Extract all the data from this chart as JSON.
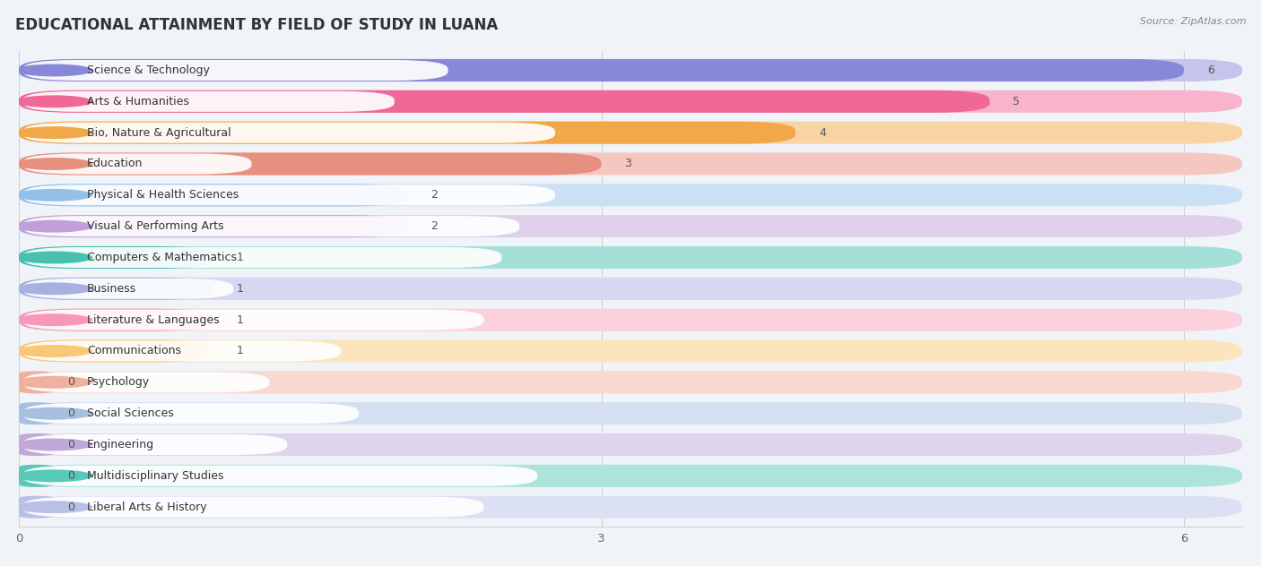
{
  "title": "EDUCATIONAL ATTAINMENT BY FIELD OF STUDY IN LUANA",
  "source": "Source: ZipAtlas.com",
  "categories": [
    "Science & Technology",
    "Arts & Humanities",
    "Bio, Nature & Agricultural",
    "Education",
    "Physical & Health Sciences",
    "Visual & Performing Arts",
    "Computers & Mathematics",
    "Business",
    "Literature & Languages",
    "Communications",
    "Psychology",
    "Social Sciences",
    "Engineering",
    "Multidisciplinary Studies",
    "Liberal Arts & History"
  ],
  "values": [
    6,
    5,
    4,
    3,
    2,
    2,
    1,
    1,
    1,
    1,
    0,
    0,
    0,
    0,
    0
  ],
  "bar_colors": [
    "#8888d8",
    "#f06898",
    "#f0a848",
    "#e89080",
    "#94c0e8",
    "#c0a0d8",
    "#48c0b0",
    "#a8b0e0",
    "#f898b8",
    "#f8c878",
    "#f0b0a0",
    "#a8c0e0",
    "#c0a8d8",
    "#58c8b8",
    "#b8c0e8"
  ],
  "bar_colors_light": [
    "#c4c4ec",
    "#f8b4cc",
    "#f8d4a4",
    "#f4c8c0",
    "#cae0f4",
    "#e0d0ec",
    "#a4e0d8",
    "#d4d8f0",
    "#fcd0dc",
    "#fce4bc",
    "#f8d8d0",
    "#d4e0f0",
    "#e0d4ec",
    "#ace4dc",
    "#dce0f4"
  ],
  "xlim": [
    0,
    6.3
  ],
  "xticks": [
    0,
    3,
    6
  ],
  "background_color": "#f0f4f8",
  "row_bg_color": "#f8f8fc",
  "title_fontsize": 12,
  "label_fontsize": 9,
  "value_fontsize": 9
}
